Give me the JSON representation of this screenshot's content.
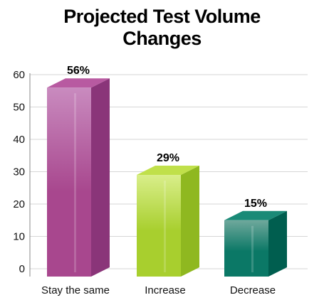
{
  "chart_data": {
    "type": "bar",
    "title_lines": [
      "Projected Test Volume",
      "Changes"
    ],
    "categories": [
      "Stay the same",
      "Increase",
      "Decrease"
    ],
    "values": [
      56,
      29,
      15
    ],
    "data_labels": [
      "56%",
      "29%",
      "15%"
    ],
    "ylim": [
      0,
      60
    ],
    "yticks": [
      0,
      10,
      20,
      30,
      40,
      50,
      60
    ],
    "grid": true,
    "legend": "none",
    "colors": {
      "stay_front_light": "#c98bbf",
      "stay_front": "#a8478e",
      "stay_side": "#8a3579",
      "stay_top": "#b85aa1",
      "increase_front_light": "#d9ee8a",
      "increase_front": "#a8cf2e",
      "increase_side": "#8fb820",
      "increase_top": "#c0e04a",
      "decrease_front_light": "#6fa89c",
      "decrease_front": "#0b7866",
      "decrease_side": "#005e4f",
      "decrease_top": "#1a8a77",
      "grid": "#d6d6d6",
      "axis": "#888888"
    }
  }
}
